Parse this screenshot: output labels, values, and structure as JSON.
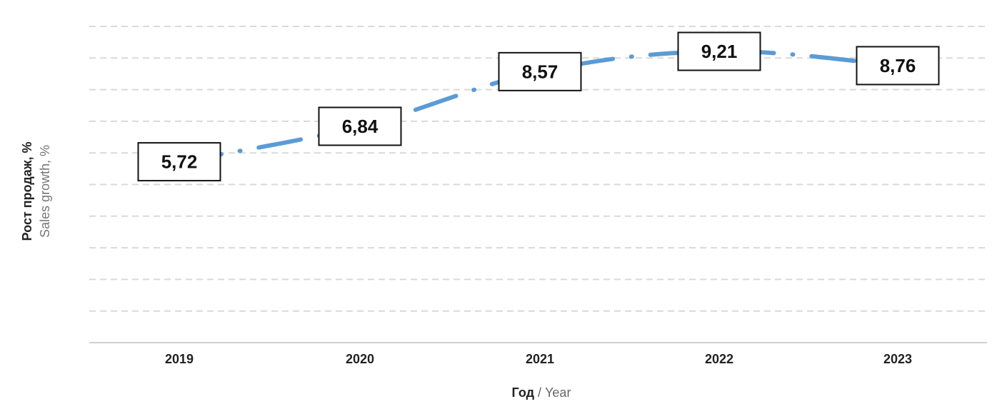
{
  "chart_data": {
    "type": "line",
    "categories": [
      "2019",
      "2020",
      "2021",
      "2022",
      "2023"
    ],
    "series": [
      {
        "values": [
          5.72,
          6.84,
          8.57,
          9.21,
          8.76
        ],
        "data_labels": [
          "5,72",
          "6,84",
          "8,57",
          "9,21",
          "8,76"
        ],
        "color": "#5b9bd5",
        "line_style": "dash-dot"
      }
    ],
    "xlabel_primary": "Год",
    "xlabel_separator": " / ",
    "xlabel_secondary": "Year",
    "ylabel_primary": "Рост продаж, %",
    "ylabel_secondary": "Sales growth, %",
    "ylim": [
      0,
      10
    ],
    "grid": true,
    "grid_style": "dashed",
    "grid_color": "#d9d9d9",
    "axis_color": "#d0d0d0"
  }
}
